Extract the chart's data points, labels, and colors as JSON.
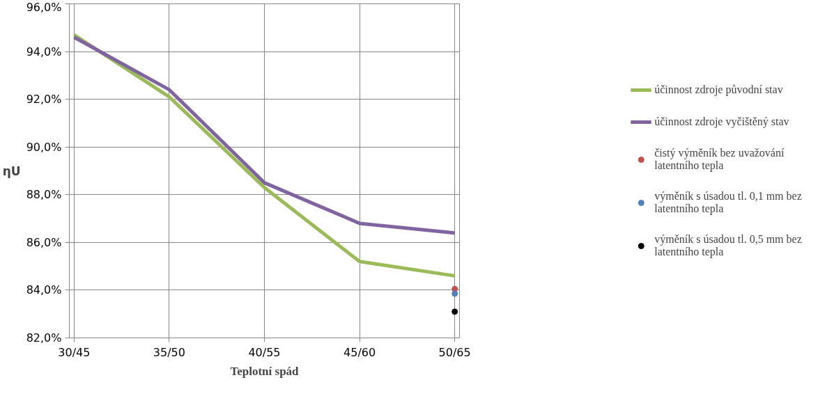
{
  "chart_data": {
    "type": "line",
    "xlabel": "Teplotní spád",
    "ylabel": "ηU",
    "categories": [
      "30/45",
      "35/50",
      "40/55",
      "45/60",
      "50/65"
    ],
    "series": [
      {
        "name": "účinnost zdroje původní stav",
        "color": "#9bbb59",
        "values": [
          94.7,
          92.1,
          88.3,
          85.2,
          84.6
        ]
      },
      {
        "name": "účinnost zdroje vyčištěný stav",
        "color": "#8064a2",
        "values": [
          94.6,
          92.4,
          88.5,
          86.8,
          86.4
        ]
      },
      {
        "name": "čistý výměník bez uvažování latentního tepla",
        "type": "scatter",
        "color": "#c0504d",
        "marker": "circle",
        "x": [
          "50/65"
        ],
        "values": [
          84.05
        ]
      },
      {
        "name": "výměník s úsadou tl. 0,1 mm bez latentního tepla",
        "type": "scatter",
        "color": "#4f81bd",
        "marker": "circle",
        "x": [
          "50/65"
        ],
        "values": [
          83.85
        ]
      },
      {
        "name": "výměník s úsadou tl. 0,5 mm bez latentního tepla",
        "type": "scatter",
        "color": "#000000",
        "marker": "circle",
        "x": [
          "50/65"
        ],
        "values": [
          83.1
        ]
      }
    ],
    "ylim": [
      82,
      96
    ],
    "yticks": [
      {
        "value": 82,
        "label": "82,0%"
      },
      {
        "value": 84,
        "label": "84,0%"
      },
      {
        "value": 86,
        "label": "86,0%"
      },
      {
        "value": 88,
        "label": "88,0%"
      },
      {
        "value": 90,
        "label": "90,0%"
      },
      {
        "value": 92,
        "label": "92,0%"
      },
      {
        "value": 94,
        "label": "94,0%"
      },
      {
        "value": 96,
        "label": "96,0%"
      }
    ],
    "grid": true,
    "legend": "right",
    "marker": "none",
    "line_style": "solid"
  }
}
